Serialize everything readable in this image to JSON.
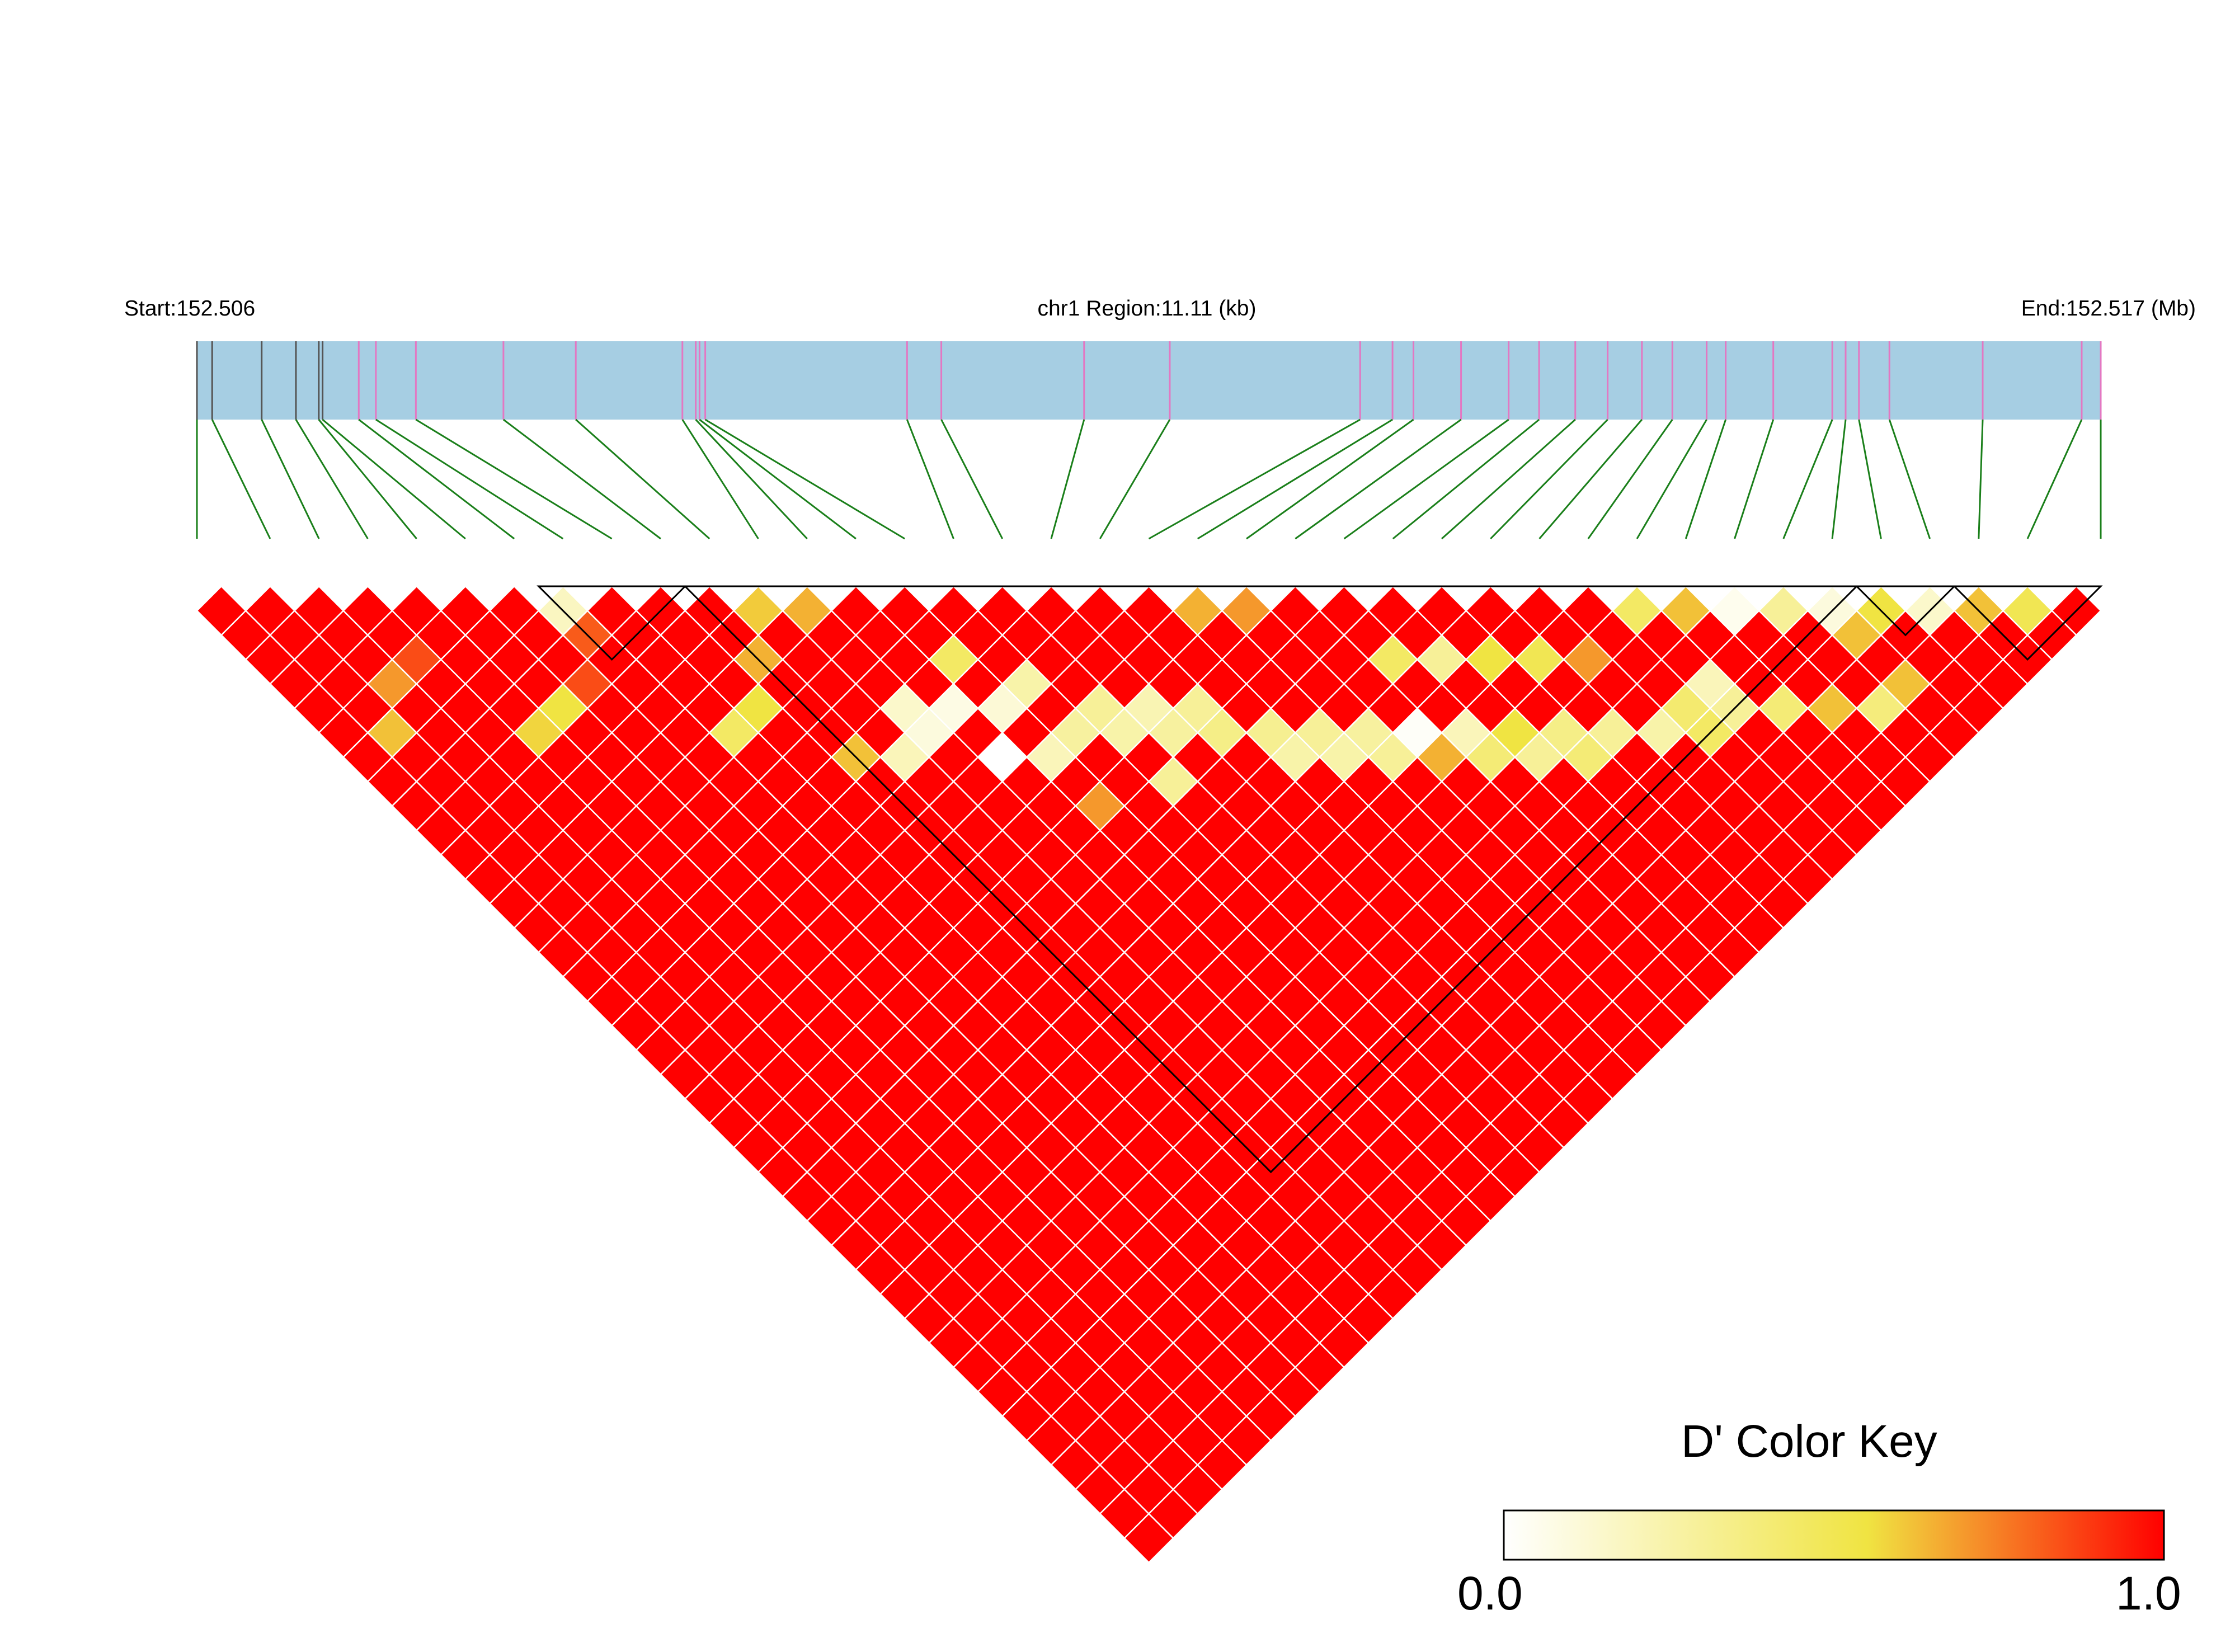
{
  "chart_data": {
    "type": "heatmap",
    "title": "",
    "header": {
      "start_label": "Start:152.506",
      "region_label": "chr1 Region:11.11 (kb)",
      "end_label": "End:152.517 (Mb)"
    },
    "measure": "D'",
    "n_snps": 39,
    "ld_blocks": [
      [
        7,
        10
      ],
      [
        10,
        34
      ],
      [
        34,
        36
      ],
      [
        36,
        39
      ]
    ],
    "highlight_cells": [
      {
        "i": 1,
        "j": 7,
        "v": 0.62
      },
      {
        "i": 2,
        "j": 6,
        "v": 0.7
      },
      {
        "i": 3,
        "j": 6,
        "v": 0.85
      },
      {
        "i": 4,
        "j": 10,
        "v": 0.58
      },
      {
        "i": 5,
        "j": 10,
        "v": 0.55
      },
      {
        "i": 6,
        "j": 10,
        "v": 0.85
      },
      {
        "i": 7,
        "j": 8,
        "v": 0.18
      },
      {
        "i": 7,
        "j": 9,
        "v": 0.82
      },
      {
        "i": 8,
        "j": 14,
        "v": 0.45
      },
      {
        "i": 9,
        "j": 14,
        "v": 0.55
      },
      {
        "i": 10,
        "j": 13,
        "v": 0.65
      },
      {
        "i": 10,
        "j": 17,
        "v": 0.62
      },
      {
        "i": 12,
        "j": 17,
        "v": 0.15
      },
      {
        "i": 12,
        "j": 18,
        "v": 0.1
      },
      {
        "i": 11,
        "j": 18,
        "v": 0.2
      },
      {
        "i": 13,
        "j": 18,
        "v": 0.08
      },
      {
        "i": 14,
        "j": 17,
        "v": 0.45
      },
      {
        "i": 14,
        "j": 19,
        "v": 0.12
      },
      {
        "i": 15,
        "j": 19,
        "v": 0.25
      },
      {
        "i": 13,
        "j": 20,
        "v": 0.0
      },
      {
        "i": 14,
        "j": 21,
        "v": 0.2
      },
      {
        "i": 15,
        "j": 21,
        "v": 0.28
      },
      {
        "i": 16,
        "j": 21,
        "v": 0.3
      },
      {
        "i": 16,
        "j": 22,
        "v": 0.25
      },
      {
        "i": 17,
        "j": 22,
        "v": 0.22
      },
      {
        "i": 17,
        "j": 23,
        "v": 0.28
      },
      {
        "i": 18,
        "j": 23,
        "v": 0.3
      },
      {
        "i": 18,
        "j": 24,
        "v": 0.35
      },
      {
        "i": 14,
        "j": 23,
        "v": 0.7
      },
      {
        "i": 16,
        "j": 24,
        "v": 0.3
      },
      {
        "i": 19,
        "j": 25,
        "v": 0.32
      },
      {
        "i": 19,
        "j": 26,
        "v": 0.25
      },
      {
        "i": 20,
        "j": 26,
        "v": 0.3
      },
      {
        "i": 20,
        "j": 27,
        "v": 0.25
      },
      {
        "i": 21,
        "j": 27,
        "v": 0.28
      },
      {
        "i": 21,
        "j": 28,
        "v": 0.3
      },
      {
        "i": 22,
        "j": 28,
        "v": 0.02
      },
      {
        "i": 23,
        "j": 29,
        "v": 0.2
      },
      {
        "i": 22,
        "j": 29,
        "v": 0.65
      },
      {
        "i": 23,
        "j": 30,
        "v": 0.4
      },
      {
        "i": 24,
        "j": 30,
        "v": 0.55
      },
      {
        "i": 24,
        "j": 31,
        "v": 0.3
      },
      {
        "i": 25,
        "j": 31,
        "v": 0.35
      },
      {
        "i": 25,
        "j": 32,
        "v": 0.4
      },
      {
        "i": 26,
        "j": 32,
        "v": 0.3
      },
      {
        "i": 27,
        "j": 33,
        "v": 0.25
      },
      {
        "i": 28,
        "j": 34,
        "v": 0.45
      },
      {
        "i": 29,
        "j": 33,
        "v": 0.2
      },
      {
        "i": 29,
        "j": 34,
        "v": 0.3
      },
      {
        "i": 30,
        "j": 35,
        "v": 0.4
      },
      {
        "i": 31,
        "j": 36,
        "v": 0.62
      },
      {
        "i": 32,
        "j": 37,
        "v": 0.38
      },
      {
        "i": 33,
        "j": 37,
        "v": 0.62
      },
      {
        "i": 20,
        "j": 21,
        "v": 0.65
      },
      {
        "i": 21,
        "j": 22,
        "v": 0.7
      },
      {
        "i": 23,
        "j": 26,
        "v": 0.45
      },
      {
        "i": 24,
        "j": 27,
        "v": 0.3
      },
      {
        "i": 25,
        "j": 28,
        "v": 0.55
      },
      {
        "i": 26,
        "j": 29,
        "v": 0.5
      },
      {
        "i": 27,
        "j": 30,
        "v": 0.7
      },
      {
        "i": 28,
        "j": 33,
        "v": 0.42
      },
      {
        "i": 30,
        "j": 31,
        "v": 0.62
      },
      {
        "i": 31,
        "j": 32,
        "v": 0.05
      },
      {
        "i": 33,
        "j": 34,
        "v": 0.1
      },
      {
        "i": 33,
        "j": 35,
        "v": 0.62
      },
      {
        "i": 34,
        "j": 35,
        "v": 0.55
      },
      {
        "i": 35,
        "j": 36,
        "v": 0.15
      },
      {
        "i": 36,
        "j": 37,
        "v": 0.62
      },
      {
        "i": 37,
        "j": 38,
        "v": 0.5
      },
      {
        "i": 11,
        "j": 12,
        "v": 0.6
      },
      {
        "i": 12,
        "j": 13,
        "v": 0.65
      },
      {
        "i": 29,
        "j": 30,
        "v": 0.45
      },
      {
        "i": 32,
        "j": 33,
        "v": 0.3
      }
    ],
    "color_key": {
      "title": "D' Color Key",
      "min_label": "0.0",
      "max_label": "1.0",
      "low_color": "#FFFFFF",
      "mid_color": "#F0E442",
      "high_color": "#FF0000"
    },
    "colors": {
      "gene_bar": "#A6CEE3",
      "snp_tick": "#E377C2",
      "connector": "#1A7F1A",
      "block_outline": "#000000",
      "cell_border": "#FFFFFF"
    }
  }
}
